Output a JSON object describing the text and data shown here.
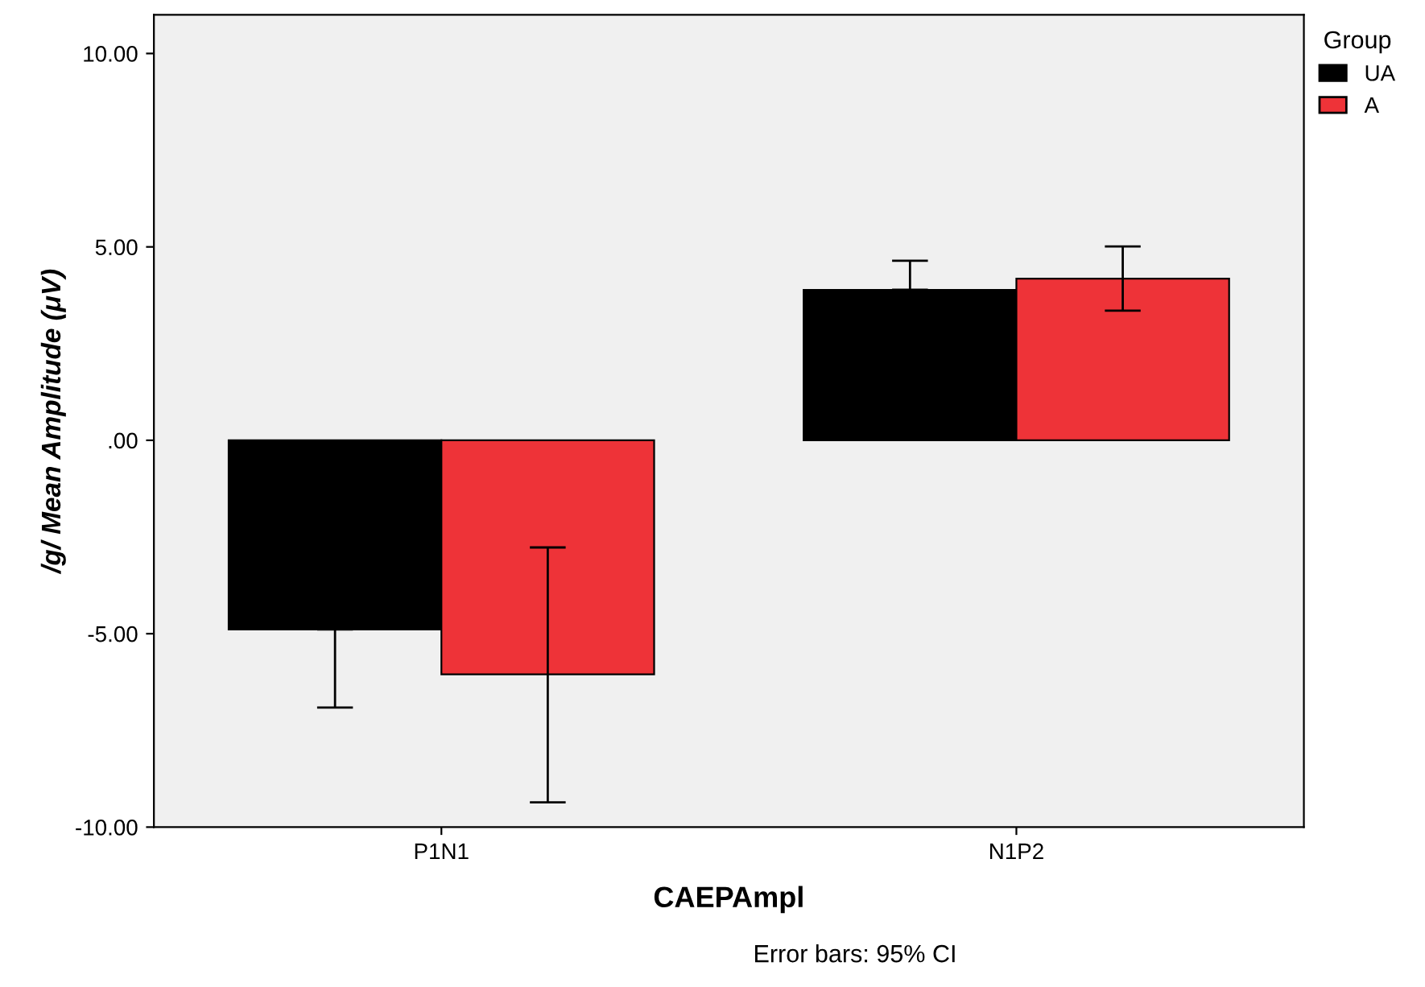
{
  "chart_data": {
    "type": "bar",
    "categories": [
      "P1N1",
      "N1P2"
    ],
    "xlabel": "CAEPAmpl",
    "ylabel": "/g/ Mean Amplitude (μV)",
    "legend_title": "Group",
    "legend": "top right",
    "grid": false,
    "series": [
      {
        "name": "UA",
        "color": "#000000",
        "values": [
          -4.89,
          3.89
        ],
        "errors": [
          [
            -6.91,
            -4.89
          ],
          [
            3.89,
            4.64
          ]
        ]
      },
      {
        "name": "A",
        "color": "#ee3338",
        "values": [
          -6.05,
          4.18
        ],
        "errors": [
          [
            -9.36,
            -2.77
          ],
          [
            3.35,
            5.01
          ]
        ]
      }
    ],
    "ylim": [
      -10,
      11
    ],
    "yticks": [
      {
        "value": 10,
        "label": "10.00"
      },
      {
        "value": 5,
        "label": "5.00"
      },
      {
        "value": 0,
        "label": ".00"
      },
      {
        "value": -5,
        "label": "-5.00"
      },
      {
        "value": -10,
        "label": "-10.00"
      }
    ],
    "annotations": [
      "Error bars: 95% CI"
    ]
  }
}
